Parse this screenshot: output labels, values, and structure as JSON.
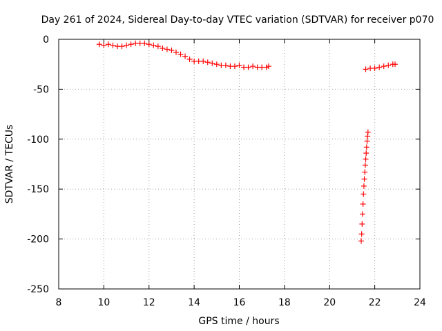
{
  "chart_data": {
    "type": "scatter",
    "title": "Day 261 of 2024, Sidereal Day-to-day VTEC variation (SDTVAR) for receiver p070",
    "xlabel": "GPS time / hours",
    "ylabel": "SDTVAR / TECUs",
    "xlim": [
      8,
      24
    ],
    "ylim": [
      -250,
      0
    ],
    "xticks": [
      8,
      10,
      12,
      14,
      16,
      18,
      20,
      22,
      24
    ],
    "yticks": [
      0,
      -50,
      -100,
      -150,
      -200,
      -250
    ],
    "grid": true,
    "marker": "+",
    "series": [
      {
        "name": "SDTVAR",
        "color": "#ff0000",
        "segments": [
          {
            "x": [
              9.8,
              10.0,
              10.2,
              10.4,
              10.6,
              10.8,
              11.0,
              11.2,
              11.4,
              11.6,
              11.8,
              12.0,
              12.2,
              12.4,
              12.6,
              12.8,
              13.0,
              13.2,
              13.4,
              13.6,
              13.8,
              14.0,
              14.2,
              14.4,
              14.6,
              14.8,
              15.0,
              15.2,
              15.4,
              15.6,
              15.8,
              16.0,
              16.2,
              16.4,
              16.6,
              16.8,
              17.0,
              17.2,
              17.3
            ],
            "y": [
              -5,
              -6,
              -5,
              -6,
              -7,
              -7,
              -6,
              -5,
              -4,
              -4,
              -4,
              -5,
              -6,
              -7,
              -9,
              -10,
              -11,
              -13,
              -15,
              -17,
              -20,
              -22,
              -22,
              -22,
              -23,
              -24,
              -25,
              -26,
              -26,
              -27,
              -27,
              -26,
              -28,
              -28,
              -27,
              -28,
              -28,
              -28,
              -27
            ]
          },
          {
            "x": [
              21.4,
              21.42,
              21.44,
              21.46,
              21.48,
              21.5,
              21.52,
              21.54,
              21.56,
              21.58,
              21.6,
              21.62,
              21.64,
              21.66,
              21.68,
              21.7
            ],
            "y": [
              -202,
              -195,
              -185,
              -175,
              -165,
              -155,
              -147,
              -140,
              -133,
              -126,
              -120,
              -114,
              -108,
              -102,
              -97,
              -93
            ]
          },
          {
            "x": [
              21.6,
              21.8,
              22.0,
              22.2,
              22.4,
              22.6,
              22.8,
              22.9
            ],
            "y": [
              -30,
              -29,
              -29,
              -28,
              -27,
              -26,
              -25,
              -25
            ]
          }
        ]
      }
    ]
  }
}
